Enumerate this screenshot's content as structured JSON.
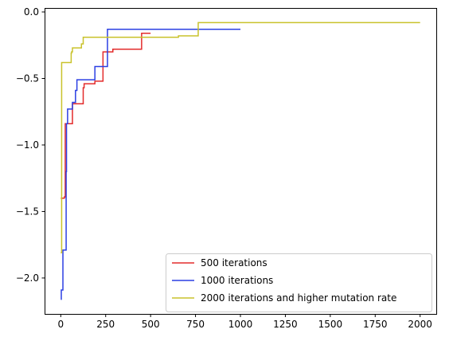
{
  "chart_data": {
    "type": "line",
    "title": "",
    "xlabel": "",
    "ylabel": "",
    "xlim": [
      -90,
      2090
    ],
    "ylim": [
      -2.27,
      0.03
    ],
    "xticks": [
      0,
      250,
      500,
      750,
      1000,
      1250,
      1500,
      1750,
      2000
    ],
    "xtick_labels": [
      "0",
      "250",
      "500",
      "750",
      "1000",
      "1250",
      "1500",
      "1750",
      "2000"
    ],
    "yticks": [
      0.0,
      -0.5,
      -1.0,
      -1.5,
      -2.0
    ],
    "ytick_labels": [
      "0.0",
      "−0.5",
      "−1.0",
      "−1.5",
      "−2.0"
    ],
    "grid": false,
    "legend_position": "lower-right",
    "step": true,
    "series": [
      {
        "name": "500 iterations",
        "color": "#e32b2b",
        "points": [
          [
            0,
            -1.4
          ],
          [
            20,
            -1.39
          ],
          [
            25,
            -0.84
          ],
          [
            60,
            -0.84
          ],
          [
            65,
            -0.69
          ],
          [
            120,
            -0.69
          ],
          [
            125,
            -0.57
          ],
          [
            130,
            -0.54
          ],
          [
            185,
            -0.54
          ],
          [
            190,
            -0.52
          ],
          [
            230,
            -0.52
          ],
          [
            235,
            -0.3
          ],
          [
            275,
            -0.3
          ],
          [
            290,
            -0.28
          ],
          [
            445,
            -0.28
          ],
          [
            450,
            -0.16
          ],
          [
            500,
            -0.16
          ]
        ]
      },
      {
        "name": "1000 iterations",
        "color": "#2b3fe3",
        "points": [
          [
            0,
            -2.16
          ],
          [
            3,
            -2.09
          ],
          [
            10,
            -2.09
          ],
          [
            12,
            -1.79
          ],
          [
            28,
            -1.79
          ],
          [
            30,
            -1.2
          ],
          [
            32,
            -0.84
          ],
          [
            38,
            -0.73
          ],
          [
            60,
            -0.73
          ],
          [
            65,
            -0.68
          ],
          [
            80,
            -0.68
          ],
          [
            82,
            -0.59
          ],
          [
            88,
            -0.59
          ],
          [
            90,
            -0.51
          ],
          [
            185,
            -0.51
          ],
          [
            190,
            -0.41
          ],
          [
            255,
            -0.41
          ],
          [
            260,
            -0.13
          ],
          [
            1000,
            -0.13
          ]
        ]
      },
      {
        "name": "2000 iterations and higher mutation rate",
        "color": "#c9c22b",
        "points": [
          [
            0,
            -1.81
          ],
          [
            5,
            -0.38
          ],
          [
            55,
            -0.38
          ],
          [
            58,
            -0.31
          ],
          [
            60,
            -0.3
          ],
          [
            65,
            -0.27
          ],
          [
            110,
            -0.27
          ],
          [
            115,
            -0.24
          ],
          [
            120,
            -0.24
          ],
          [
            125,
            -0.19
          ],
          [
            650,
            -0.19
          ],
          [
            655,
            -0.18
          ],
          [
            760,
            -0.18
          ],
          [
            765,
            -0.08
          ],
          [
            2000,
            -0.08
          ]
        ]
      }
    ]
  }
}
